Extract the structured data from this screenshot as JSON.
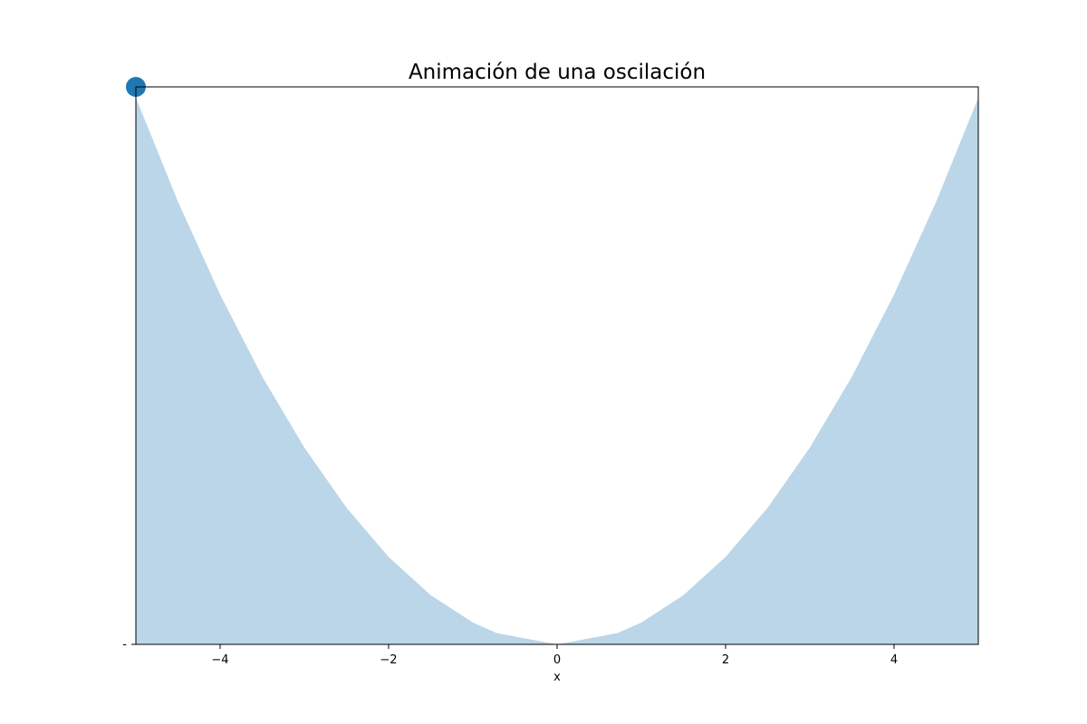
{
  "chart_data": {
    "type": "area",
    "title": "Animación de una oscilación",
    "xlabel": "x",
    "ylabel": "",
    "xlim": [
      -5,
      5
    ],
    "ylim": [
      0,
      25.5
    ],
    "x_ticks": [
      -4,
      -2,
      0,
      2,
      4
    ],
    "x_tick_labels": [
      "−4",
      "−2",
      "0",
      "2",
      "4"
    ],
    "y_tick_labels": [
      "-"
    ],
    "grid": false,
    "series": [
      {
        "kind": "filled-area",
        "x": [
          -5.0,
          -4.5,
          -4.0,
          -3.5,
          -3.0,
          -2.5,
          -2.0,
          -1.5,
          -1.0,
          -0.714,
          0.0,
          0.714,
          1.0,
          1.5,
          2.0,
          2.5,
          3.0,
          3.5,
          4.0,
          4.5,
          5.0
        ],
        "y": [
          25.0,
          20.25,
          16.0,
          12.25,
          9.0,
          6.25,
          4.0,
          2.25,
          1.0,
          0.51,
          0.0,
          0.51,
          1.0,
          2.25,
          4.0,
          6.25,
          9.0,
          12.25,
          16.0,
          20.25,
          25.0
        ],
        "color": "#bbd6e8"
      },
      {
        "kind": "marker",
        "x": [
          -5.0
        ],
        "y": [
          25.5
        ],
        "color": "#1f77b4"
      }
    ]
  }
}
